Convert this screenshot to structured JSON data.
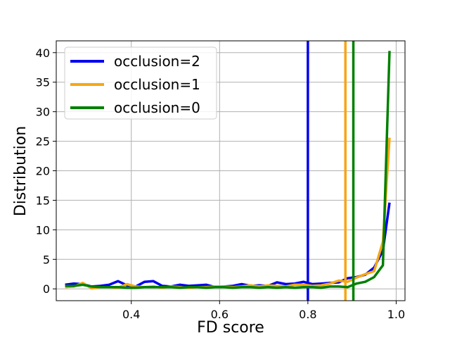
{
  "chart_data": {
    "type": "line",
    "title": "",
    "xlabel": "FD score",
    "ylabel": "Distribution",
    "xlim": [
      0.23,
      1.02
    ],
    "ylim": [
      -2.0,
      42.0
    ],
    "xticks": [
      0.4,
      0.6,
      0.8,
      1.0
    ],
    "xtick_labels": [
      "0.4",
      "0.6",
      "0.8",
      "1.0"
    ],
    "yticks": [
      0,
      5,
      10,
      15,
      20,
      25,
      30,
      35,
      40
    ],
    "ytick_labels": [
      "0",
      "5",
      "10",
      "15",
      "20",
      "25",
      "30",
      "35",
      "40"
    ],
    "grid": true,
    "legend_position": "top-left",
    "x": [
      0.25,
      0.27,
      0.29,
      0.31,
      0.33,
      0.35,
      0.37,
      0.39,
      0.41,
      0.43,
      0.45,
      0.47,
      0.49,
      0.51,
      0.53,
      0.55,
      0.57,
      0.59,
      0.61,
      0.63,
      0.65,
      0.67,
      0.69,
      0.71,
      0.73,
      0.75,
      0.77,
      0.79,
      0.81,
      0.83,
      0.85,
      0.87,
      0.89,
      0.91,
      0.93,
      0.95,
      0.97,
      0.985
    ],
    "series": [
      {
        "name": "occlusion=2",
        "color": "#0000ee",
        "values": [
          0.7,
          0.9,
          0.8,
          0.4,
          0.5,
          0.7,
          1.3,
          0.6,
          0.4,
          1.2,
          1.3,
          0.5,
          0.4,
          0.7,
          0.5,
          0.6,
          0.7,
          0.3,
          0.4,
          0.5,
          0.8,
          0.5,
          0.6,
          0.5,
          1.1,
          0.8,
          0.9,
          1.2,
          0.8,
          0.9,
          1.0,
          1.1,
          1.8,
          2.0,
          2.4,
          3.6,
          6.5,
          14.6
        ],
        "vline": 0.8
      },
      {
        "name": "occlusion=1",
        "color": "#f5a714",
        "values": [
          0.3,
          0.4,
          1.0,
          0.1,
          0.3,
          0.3,
          0.2,
          0.8,
          0.4,
          0.3,
          0.4,
          0.2,
          0.4,
          0.3,
          0.2,
          0.3,
          0.3,
          0.4,
          0.4,
          0.3,
          0.4,
          0.6,
          0.4,
          0.6,
          0.5,
          0.4,
          0.7,
          0.7,
          0.5,
          0.6,
          0.9,
          1.4,
          1.2,
          1.9,
          2.5,
          3.0,
          8.0,
          25.6
        ],
        "vline": 0.885
      },
      {
        "name": "occlusion=0",
        "color": "#008000",
        "values": [
          0.5,
          0.5,
          0.7,
          0.4,
          0.3,
          0.3,
          0.3,
          0.2,
          0.2,
          0.3,
          0.3,
          0.3,
          0.3,
          0.2,
          0.3,
          0.3,
          0.2,
          0.3,
          0.3,
          0.2,
          0.3,
          0.3,
          0.2,
          0.3,
          0.2,
          0.3,
          0.2,
          0.3,
          0.3,
          0.2,
          0.4,
          0.4,
          0.3,
          0.9,
          1.2,
          2.0,
          4.0,
          40.3
        ],
        "vline": 0.903
      }
    ]
  }
}
